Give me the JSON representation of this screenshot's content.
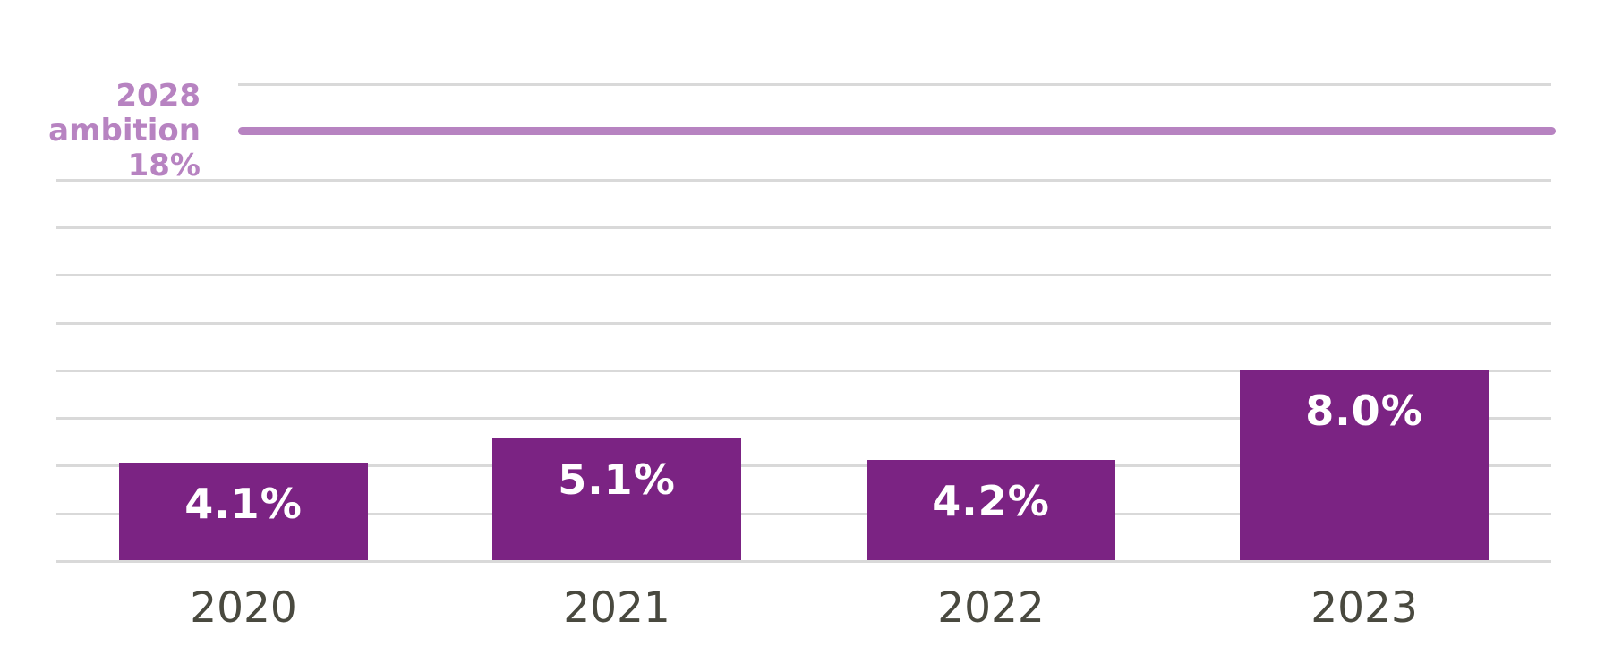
{
  "chart_data": {
    "type": "bar",
    "title": "",
    "xlabel": "",
    "ylabel": "",
    "categories": [
      "2020",
      "2021",
      "2022",
      "2023"
    ],
    "values": [
      4.1,
      5.1,
      4.2,
      8.0
    ],
    "value_labels": [
      "4.1%",
      "5.1%",
      "4.2%",
      "8.0%"
    ],
    "ylim": [
      0,
      20
    ],
    "gridline_step": 2,
    "grid": "on",
    "legend": "none",
    "reference_line": {
      "value": 18,
      "label_lines": [
        "2028",
        "ambition",
        "18%"
      ],
      "label_text": "2028 ambition 18%"
    },
    "colors": {
      "bar": "#7b2383",
      "reference_line": "#b783c1",
      "reference_label": "#b783c1",
      "bar_label": "#ffffff",
      "axis_label": "#49493f",
      "gridline": "#d9d9d9",
      "background": "#ffffff"
    }
  }
}
